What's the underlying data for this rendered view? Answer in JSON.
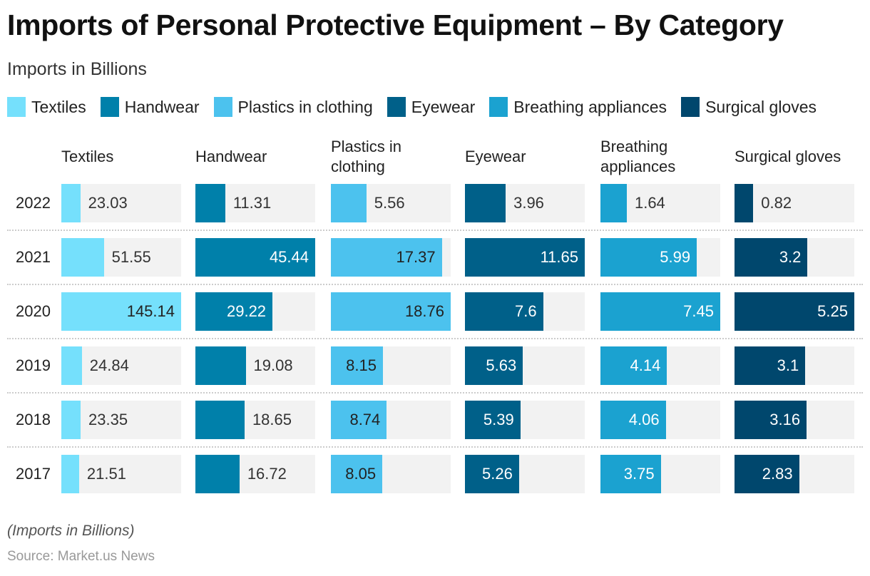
{
  "chart_data": {
    "type": "bar",
    "title": "Imports of Personal Protective Equipment – By Category",
    "subtitle": "Imports in Billions",
    "categories": [
      "2022",
      "2021",
      "2020",
      "2019",
      "2018",
      "2017"
    ],
    "series": [
      {
        "name": "Textiles",
        "header": [
          "Textiles"
        ],
        "color": "#75e0fc",
        "text_inside": "#222222",
        "values": [
          23.03,
          51.55,
          145.14,
          24.84,
          23.35,
          21.51
        ]
      },
      {
        "name": "Handwear",
        "header": [
          "Handwear"
        ],
        "color": "#0080aa",
        "text_inside": "#ffffff",
        "values": [
          11.31,
          45.44,
          29.22,
          19.08,
          18.65,
          16.72
        ]
      },
      {
        "name": "Plastics in clothing",
        "header": [
          "Plastics in",
          "clothing"
        ],
        "color": "#4cc2ee",
        "text_inside": "#222222",
        "values": [
          5.56,
          17.37,
          18.76,
          8.15,
          8.74,
          8.05
        ]
      },
      {
        "name": "Eyewear",
        "header": [
          "Eyewear"
        ],
        "color": "#006089",
        "text_inside": "#ffffff",
        "values": [
          3.96,
          11.65,
          7.6,
          5.63,
          5.39,
          5.26
        ]
      },
      {
        "name": "Breathing appliances",
        "header": [
          "Breathing",
          "appliances"
        ],
        "color": "#1ba2d0",
        "text_inside": "#ffffff",
        "values": [
          1.64,
          5.99,
          7.45,
          4.14,
          4.06,
          3.75
        ]
      },
      {
        "name": "Surgical gloves",
        "header": [
          "Surgical gloves"
        ],
        "color": "#00476d",
        "text_inside": "#ffffff",
        "values": [
          0.82,
          3.2,
          5.25,
          3.1,
          3.16,
          2.83
        ]
      }
    ],
    "note": "(Imports in Billions)",
    "source": "Source: Market.us News"
  }
}
